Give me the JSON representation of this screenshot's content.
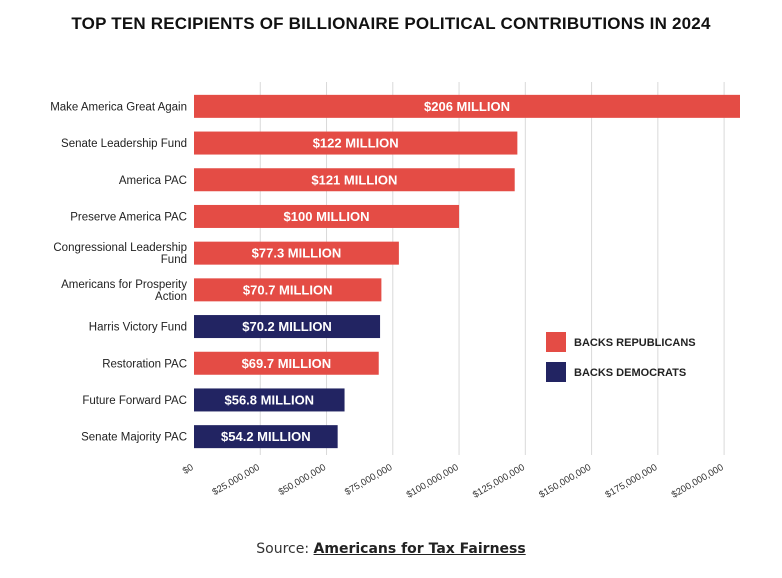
{
  "chart_data": {
    "type": "bar",
    "orientation": "horizontal",
    "title": "TOP TEN RECIPIENTS OF BILLIONAIRE POLITICAL CONTRIBUTIONS IN 2024",
    "categories": [
      "Make America Great Again",
      "Senate Leadership Fund",
      "America PAC",
      "Preserve America PAC",
      "Congressional Leadership Fund",
      "Americans for Prosperity Action",
      "Harris Victory Fund",
      "Restoration PAC",
      "Future Forward PAC",
      "Senate Majority PAC"
    ],
    "values": [
      206000000,
      122000000,
      121000000,
      100000000,
      77300000,
      70700000,
      70200000,
      69700000,
      56800000,
      54200000
    ],
    "data_labels": [
      "$206 MILLION",
      "$122 MILLION",
      "$121 MILLION",
      "$100 MILLION",
      "$77.3 MILLION",
      "$70.7 MILLION",
      "$70.2 MILLION",
      "$69.7 MILLION",
      "$56.8 MILLION",
      "$54.2 MILLION"
    ],
    "party": [
      "rep",
      "rep",
      "rep",
      "rep",
      "rep",
      "rep",
      "dem",
      "rep",
      "dem",
      "dem"
    ],
    "xlim": [
      0,
      206000000
    ],
    "x_ticks": [
      0,
      25000000,
      50000000,
      75000000,
      100000000,
      125000000,
      150000000,
      175000000,
      200000000
    ],
    "x_tick_labels": [
      "$0",
      "$25,000,000",
      "$50,000,000",
      "$75,000,000",
      "$100,000,000",
      "$125,000,000",
      "$150,000,000",
      "$175,000,000",
      "$200,000,000"
    ],
    "grid": true,
    "legend": {
      "position": "right",
      "entries": [
        {
          "key": "rep",
          "label": "BACKS REPUBLICANS",
          "color": "#e44c45"
        },
        {
          "key": "dem",
          "label": "BACKS DEMOCRATS",
          "color": "#222462"
        }
      ]
    },
    "colors": {
      "rep": "#e44c45",
      "dem": "#222462",
      "grid": "#d9d9d9"
    }
  },
  "source": {
    "prefix": "Source: ",
    "link_text": "Americans for Tax Fairness"
  }
}
